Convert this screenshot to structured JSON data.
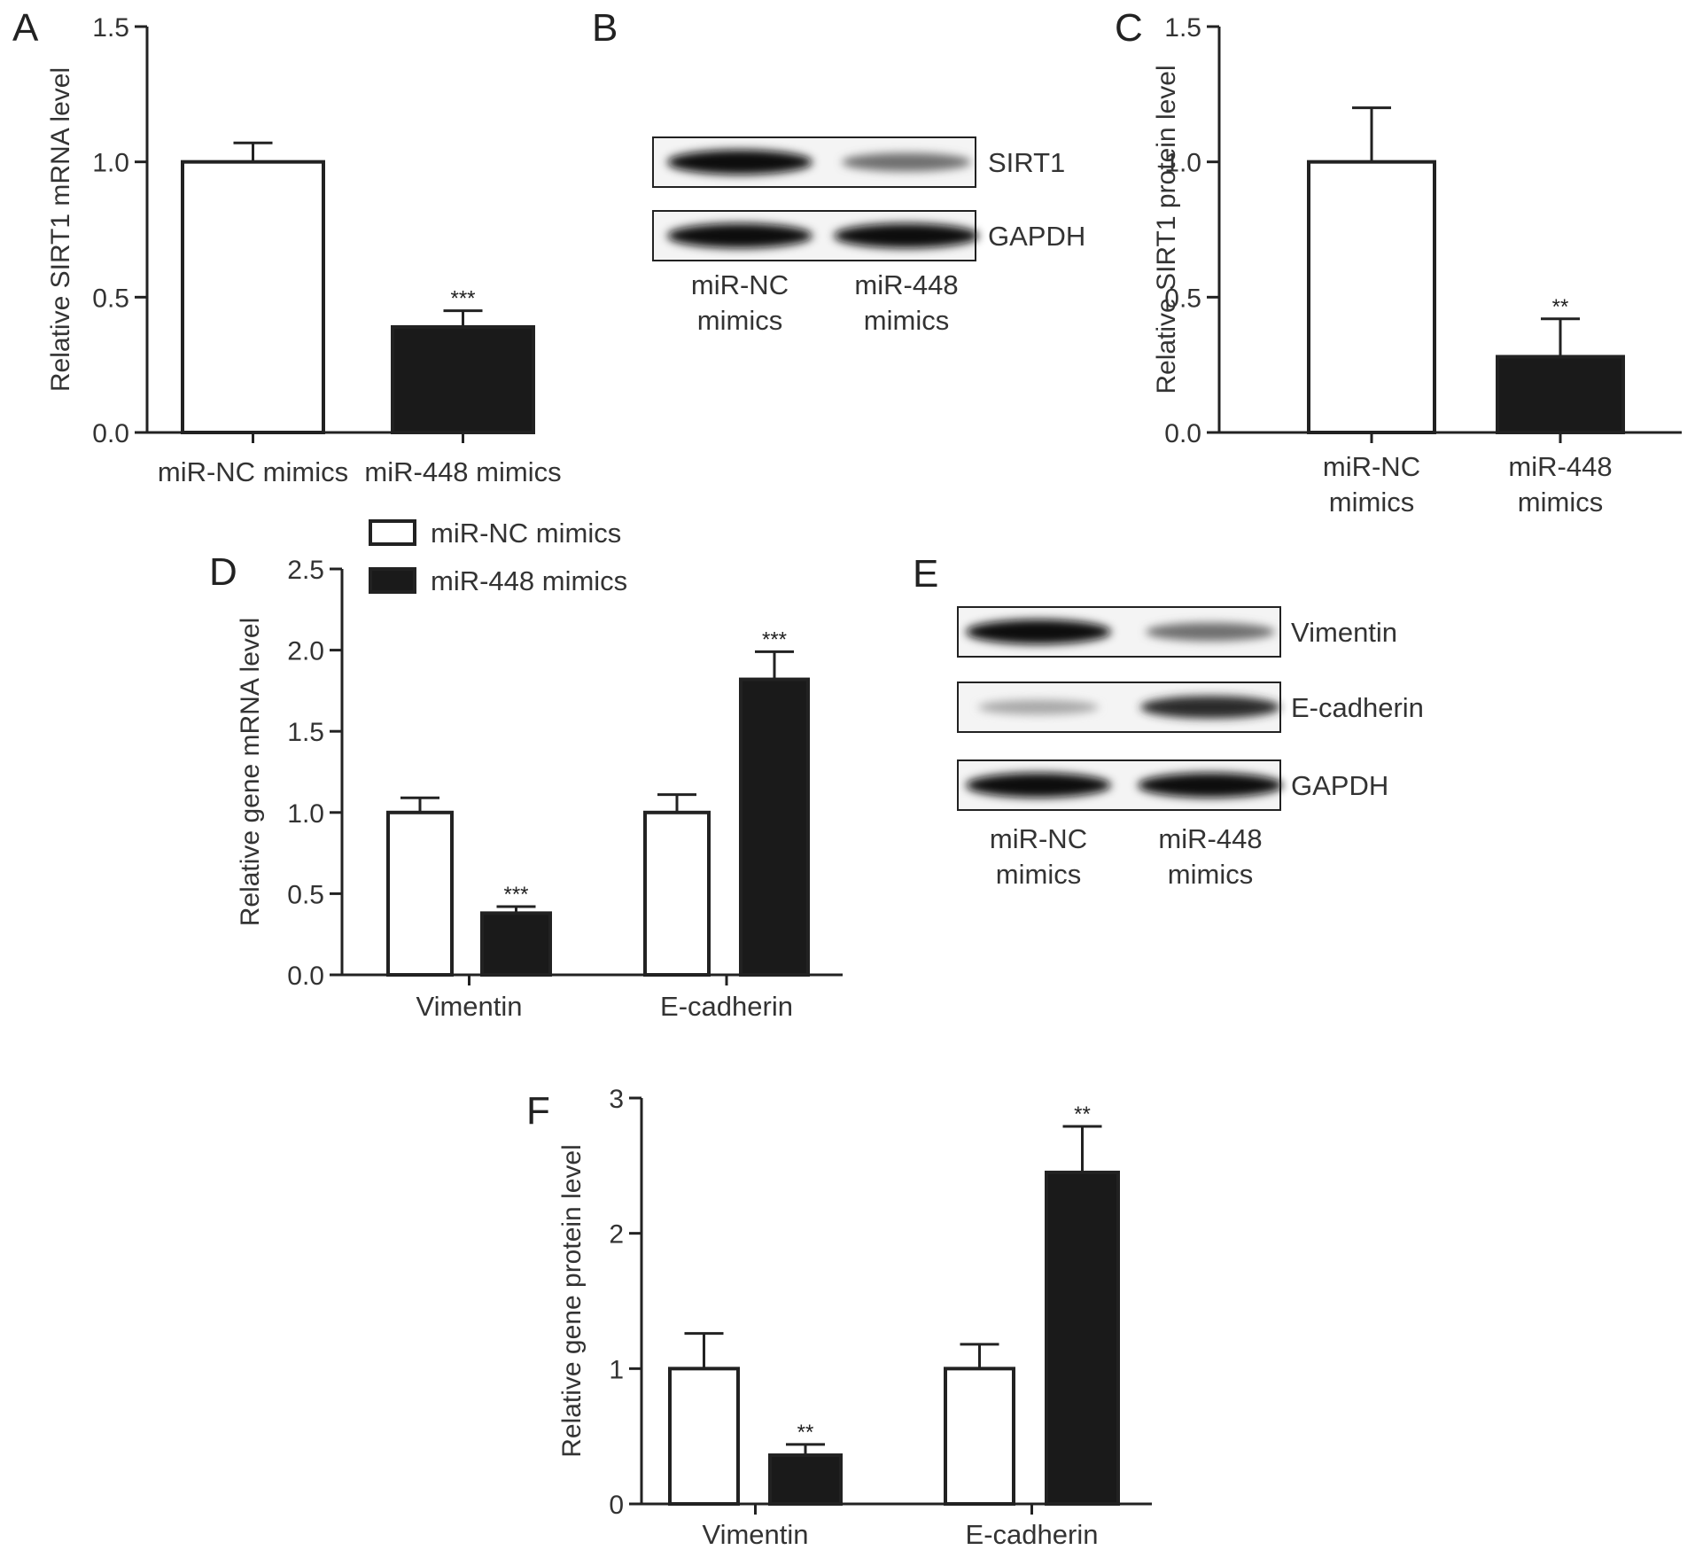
{
  "colors": {
    "nc_fill": "#ffffff",
    "mir448_fill": "#1a1a1a",
    "axis": "#222222"
  },
  "legend": [
    "miR-NC mimics",
    "miR-448 mimics"
  ],
  "chart_data": [
    {
      "panel": "A",
      "type": "bar",
      "ylabel": "Relative SIRT1 mRNA level",
      "ylim": [
        0,
        1.5
      ],
      "yticks": [
        "0.0",
        "0.5",
        "1.0",
        "1.5"
      ],
      "categories": [
        "miR-NC mimics",
        "miR-448 mimics"
      ],
      "values": [
        1.0,
        0.39
      ],
      "errors": [
        0.07,
        0.06
      ],
      "significance": [
        "",
        "***"
      ]
    },
    {
      "panel": "C",
      "type": "bar",
      "ylabel": "Relative SIRT1 protein level",
      "ylim": [
        0,
        1.5
      ],
      "yticks": [
        "0.0",
        "0.5",
        "1.0",
        "1.5"
      ],
      "categories": [
        "miR-NC\nmimics",
        "miR-448\nmimics"
      ],
      "values": [
        1.0,
        0.28
      ],
      "errors": [
        0.2,
        0.14
      ],
      "significance": [
        "",
        "**"
      ]
    },
    {
      "panel": "D",
      "type": "bar",
      "ylabel": "Relative gene mRNA level",
      "ylim": [
        0,
        2.5
      ],
      "yticks": [
        "0.0",
        "0.5",
        "1.0",
        "1.5",
        "2.0",
        "2.5"
      ],
      "categories": [
        "Vimentin",
        "E-cadherin"
      ],
      "legend": "top-left",
      "series": [
        {
          "name": "miR-NC mimics",
          "values": [
            1.0,
            1.0
          ],
          "errors": [
            0.09,
            0.11
          ],
          "significance": [
            "",
            ""
          ]
        },
        {
          "name": "miR-448 mimics",
          "values": [
            0.38,
            1.82
          ],
          "errors": [
            0.04,
            0.17
          ],
          "significance": [
            "***",
            "***"
          ]
        }
      ]
    },
    {
      "panel": "F",
      "type": "bar",
      "ylabel": "Relative gene protein level",
      "ylim": [
        0,
        3
      ],
      "yticks": [
        "0",
        "1",
        "2",
        "3"
      ],
      "categories": [
        "Vimentin",
        "E-cadherin"
      ],
      "series": [
        {
          "name": "miR-NC mimics",
          "values": [
            1.0,
            1.0
          ],
          "errors": [
            0.26,
            0.18
          ],
          "significance": [
            "",
            ""
          ]
        },
        {
          "name": "miR-448 mimics",
          "values": [
            0.36,
            2.45
          ],
          "errors": [
            0.08,
            0.34
          ],
          "significance": [
            "**",
            "**"
          ]
        }
      ]
    }
  ],
  "blots": [
    {
      "panel": "B",
      "rows": [
        {
          "label": "SIRT1",
          "intensity": [
            1.0,
            0.55
          ]
        },
        {
          "label": "GAPDH",
          "intensity": [
            1.0,
            1.0
          ]
        }
      ],
      "lanes": [
        "miR-NC\nmimics",
        "miR-448\nmimics"
      ]
    },
    {
      "panel": "E",
      "rows": [
        {
          "label": "Vimentin",
          "intensity": [
            1.0,
            0.55
          ]
        },
        {
          "label": "E-cadherin",
          "intensity": [
            0.3,
            0.85
          ]
        },
        {
          "label": "GAPDH",
          "intensity": [
            1.0,
            1.0
          ]
        }
      ],
      "lanes": [
        "miR-NC\nmimics",
        "miR-448\nmimics"
      ]
    }
  ]
}
